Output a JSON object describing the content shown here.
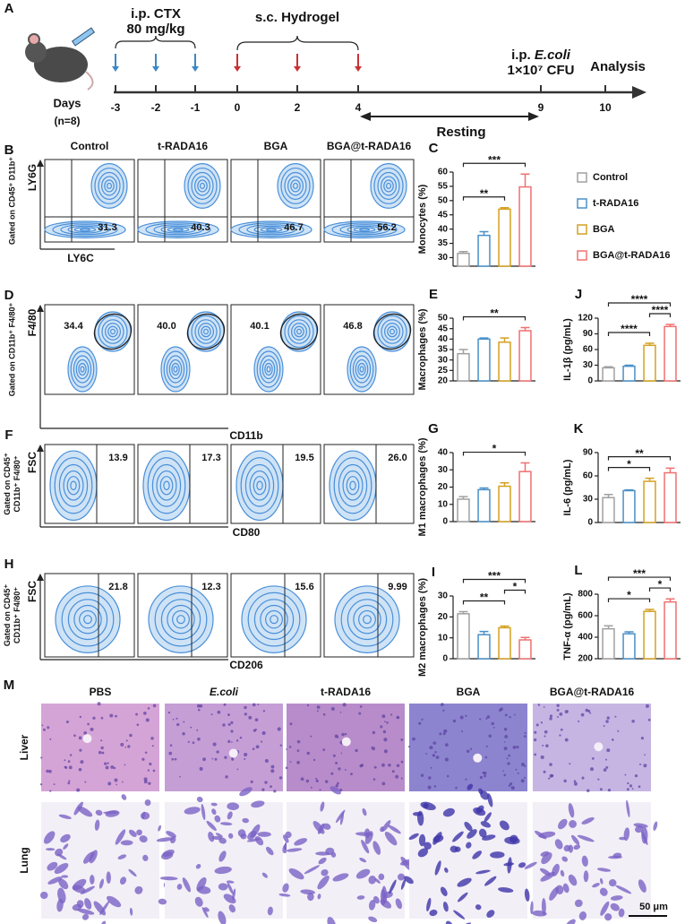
{
  "timeline": {
    "letter": "A",
    "ctx_label": "i.p. CTX",
    "ctx_dose": "80 mg/kg",
    "hydrogel_label": "s.c. Hydrogel",
    "ecoli_prefix": "i.p. ",
    "ecoli_name": "E.coli",
    "ecoli_dose": "1×10⁷ CFU",
    "analysis": "Analysis",
    "days_label": "Days",
    "n_label": "(n=8)",
    "days": [
      "-3",
      "-2",
      "-1",
      "0",
      "2",
      "4",
      "9",
      "10"
    ],
    "resting": "Resting"
  },
  "flow": {
    "groups": [
      "Control",
      "t-RADA16",
      "BGA",
      "BGA@t-RADA16"
    ],
    "panels": [
      {
        "letter": "B",
        "gating": [
          "Gated on CD45⁺ D11b⁺"
        ],
        "y_axis": "LY6G",
        "x_axis": "LY6C",
        "values": [
          "31.3",
          "40.3",
          "46.7",
          "56.2"
        ]
      },
      {
        "letter": "D",
        "gating": [
          "Gated on CD11b⁺ F4/80⁺"
        ],
        "y_axis": "F4/80",
        "x_axis": "CD11b",
        "values": [
          "34.4",
          "40.0",
          "40.1",
          "46.8"
        ]
      },
      {
        "letter": "F",
        "gating": [
          "Gated on CD45⁺",
          "CD11b⁺ F4/80⁺"
        ],
        "y_axis": "FSC",
        "x_axis": "CD80",
        "values": [
          "13.9",
          "17.3",
          "19.5",
          "26.0"
        ]
      },
      {
        "letter": "H",
        "gating": [
          "Gated on CD45⁺",
          "CD11b⁺ F4/80⁺"
        ],
        "y_axis": "FSC",
        "x_axis": "CD206",
        "values": [
          "21.8",
          "12.3",
          "15.6",
          "9.99"
        ]
      }
    ]
  },
  "chart_data": [
    {
      "type": "bar",
      "letter": "C",
      "ylabel": "Monocytes (%)",
      "categories": [
        null,
        null,
        null,
        null
      ],
      "colors": [
        "#a0a0a0",
        "#4a90c8",
        "#d4a020",
        "#f07070"
      ],
      "values": [
        31.5,
        37.8,
        47,
        54.8
      ],
      "errors": [
        0.6,
        1.3,
        0.5,
        4.5
      ],
      "ylim": [
        27,
        60
      ],
      "yticks": [
        30,
        35,
        40,
        45,
        50,
        55,
        60
      ],
      "significance": [
        {
          "groups": [
            0,
            2
          ],
          "label": "**"
        },
        {
          "groups": [
            0,
            3
          ],
          "label": "***"
        }
      ],
      "legend": [
        "Control",
        "t-RADA16",
        "BGA",
        "BGA@t-RADA16"
      ]
    },
    {
      "type": "bar",
      "letter": "E",
      "ylabel": "Macrophages (%)",
      "categories": [
        null,
        null,
        null,
        null
      ],
      "colors": [
        "#a0a0a0",
        "#4a90c8",
        "#d4a020",
        "#f07070"
      ],
      "values": [
        33,
        40,
        38.5,
        44
      ],
      "errors": [
        2,
        0.5,
        2,
        1.5
      ],
      "ylim": [
        20,
        50
      ],
      "yticks": [
        20,
        25,
        30,
        35,
        40,
        45,
        50
      ],
      "significance": [
        {
          "groups": [
            0,
            3
          ],
          "label": "**"
        }
      ]
    },
    {
      "type": "bar",
      "letter": "G",
      "ylabel": "M1 macrophages (%)",
      "categories": [
        null,
        null,
        null,
        null
      ],
      "colors": [
        "#a0a0a0",
        "#4a90c8",
        "#d4a020",
        "#f07070"
      ],
      "values": [
        13,
        18.5,
        20.5,
        29
      ],
      "errors": [
        1.5,
        1,
        2,
        5
      ],
      "ylim": [
        0,
        40
      ],
      "yticks": [
        0,
        10,
        20,
        30,
        40
      ],
      "significance": [
        {
          "groups": [
            0,
            3
          ],
          "label": "*"
        }
      ]
    },
    {
      "type": "bar",
      "letter": "I",
      "ylabel": "M2 macrophages (%)",
      "categories": [
        null,
        null,
        null,
        null
      ],
      "colors": [
        "#a0a0a0",
        "#4a90c8",
        "#d4a020",
        "#f07070"
      ],
      "values": [
        21.5,
        11.5,
        14.8,
        9
      ],
      "errors": [
        1,
        1.5,
        0.8,
        1.2
      ],
      "ylim": [
        0,
        30
      ],
      "yticks": [
        0,
        10,
        20,
        30
      ],
      "significance": [
        {
          "groups": [
            0,
            2
          ],
          "label": "**"
        },
        {
          "groups": [
            2,
            3
          ],
          "label": "*"
        },
        {
          "groups": [
            0,
            3
          ],
          "label": "***"
        }
      ]
    },
    {
      "type": "bar",
      "letter": "J",
      "ylabel": "IL-1β (pg/mL)",
      "categories": [
        null,
        null,
        null,
        null
      ],
      "colors": [
        "#a0a0a0",
        "#4a90c8",
        "#d4a020",
        "#f07070"
      ],
      "values": [
        25,
        28,
        68,
        104
      ],
      "errors": [
        2,
        2,
        4,
        4
      ],
      "ylim": [
        0,
        120
      ],
      "yticks": [
        0,
        30,
        60,
        90,
        120
      ],
      "significance": [
        {
          "groups": [
            0,
            2
          ],
          "label": "****"
        },
        {
          "groups": [
            2,
            3
          ],
          "label": "****"
        },
        {
          "groups": [
            0,
            3
          ],
          "label": "****"
        }
      ]
    },
    {
      "type": "bar",
      "letter": "K",
      "ylabel": "IL-6 (pg/mL)",
      "categories": [
        null,
        null,
        null,
        null
      ],
      "colors": [
        "#a0a0a0",
        "#4a90c8",
        "#d4a020",
        "#f07070"
      ],
      "values": [
        32,
        41,
        53,
        64
      ],
      "errors": [
        4,
        1,
        4,
        6
      ],
      "ylim": [
        0,
        90
      ],
      "yticks": [
        0,
        30,
        60,
        90
      ],
      "significance": [
        {
          "groups": [
            0,
            2
          ],
          "label": "*"
        },
        {
          "groups": [
            0,
            3
          ],
          "label": "**"
        }
      ]
    },
    {
      "type": "bar",
      "letter": "L",
      "ylabel": "TNF-α (pg/mL)",
      "categories": [
        null,
        null,
        null,
        null
      ],
      "colors": [
        "#a0a0a0",
        "#4a90c8",
        "#d4a020",
        "#f07070"
      ],
      "values": [
        478,
        432,
        640,
        728
      ],
      "errors": [
        28,
        18,
        18,
        28
      ],
      "ylim": [
        200,
        800
      ],
      "yticks": [
        200,
        400,
        600,
        800
      ],
      "significance": [
        {
          "groups": [
            0,
            2
          ],
          "label": "*"
        },
        {
          "groups": [
            2,
            3
          ],
          "label": "*"
        },
        {
          "groups": [
            0,
            3
          ],
          "label": "***"
        }
      ]
    }
  ],
  "histology": {
    "letter": "M",
    "columns": [
      "PBS",
      "E.coli",
      "t-RADA16",
      "BGA",
      "BGA@t-RADA16"
    ],
    "rows": [
      "Liver",
      "Lung"
    ],
    "scale_bar": "50 μm"
  }
}
